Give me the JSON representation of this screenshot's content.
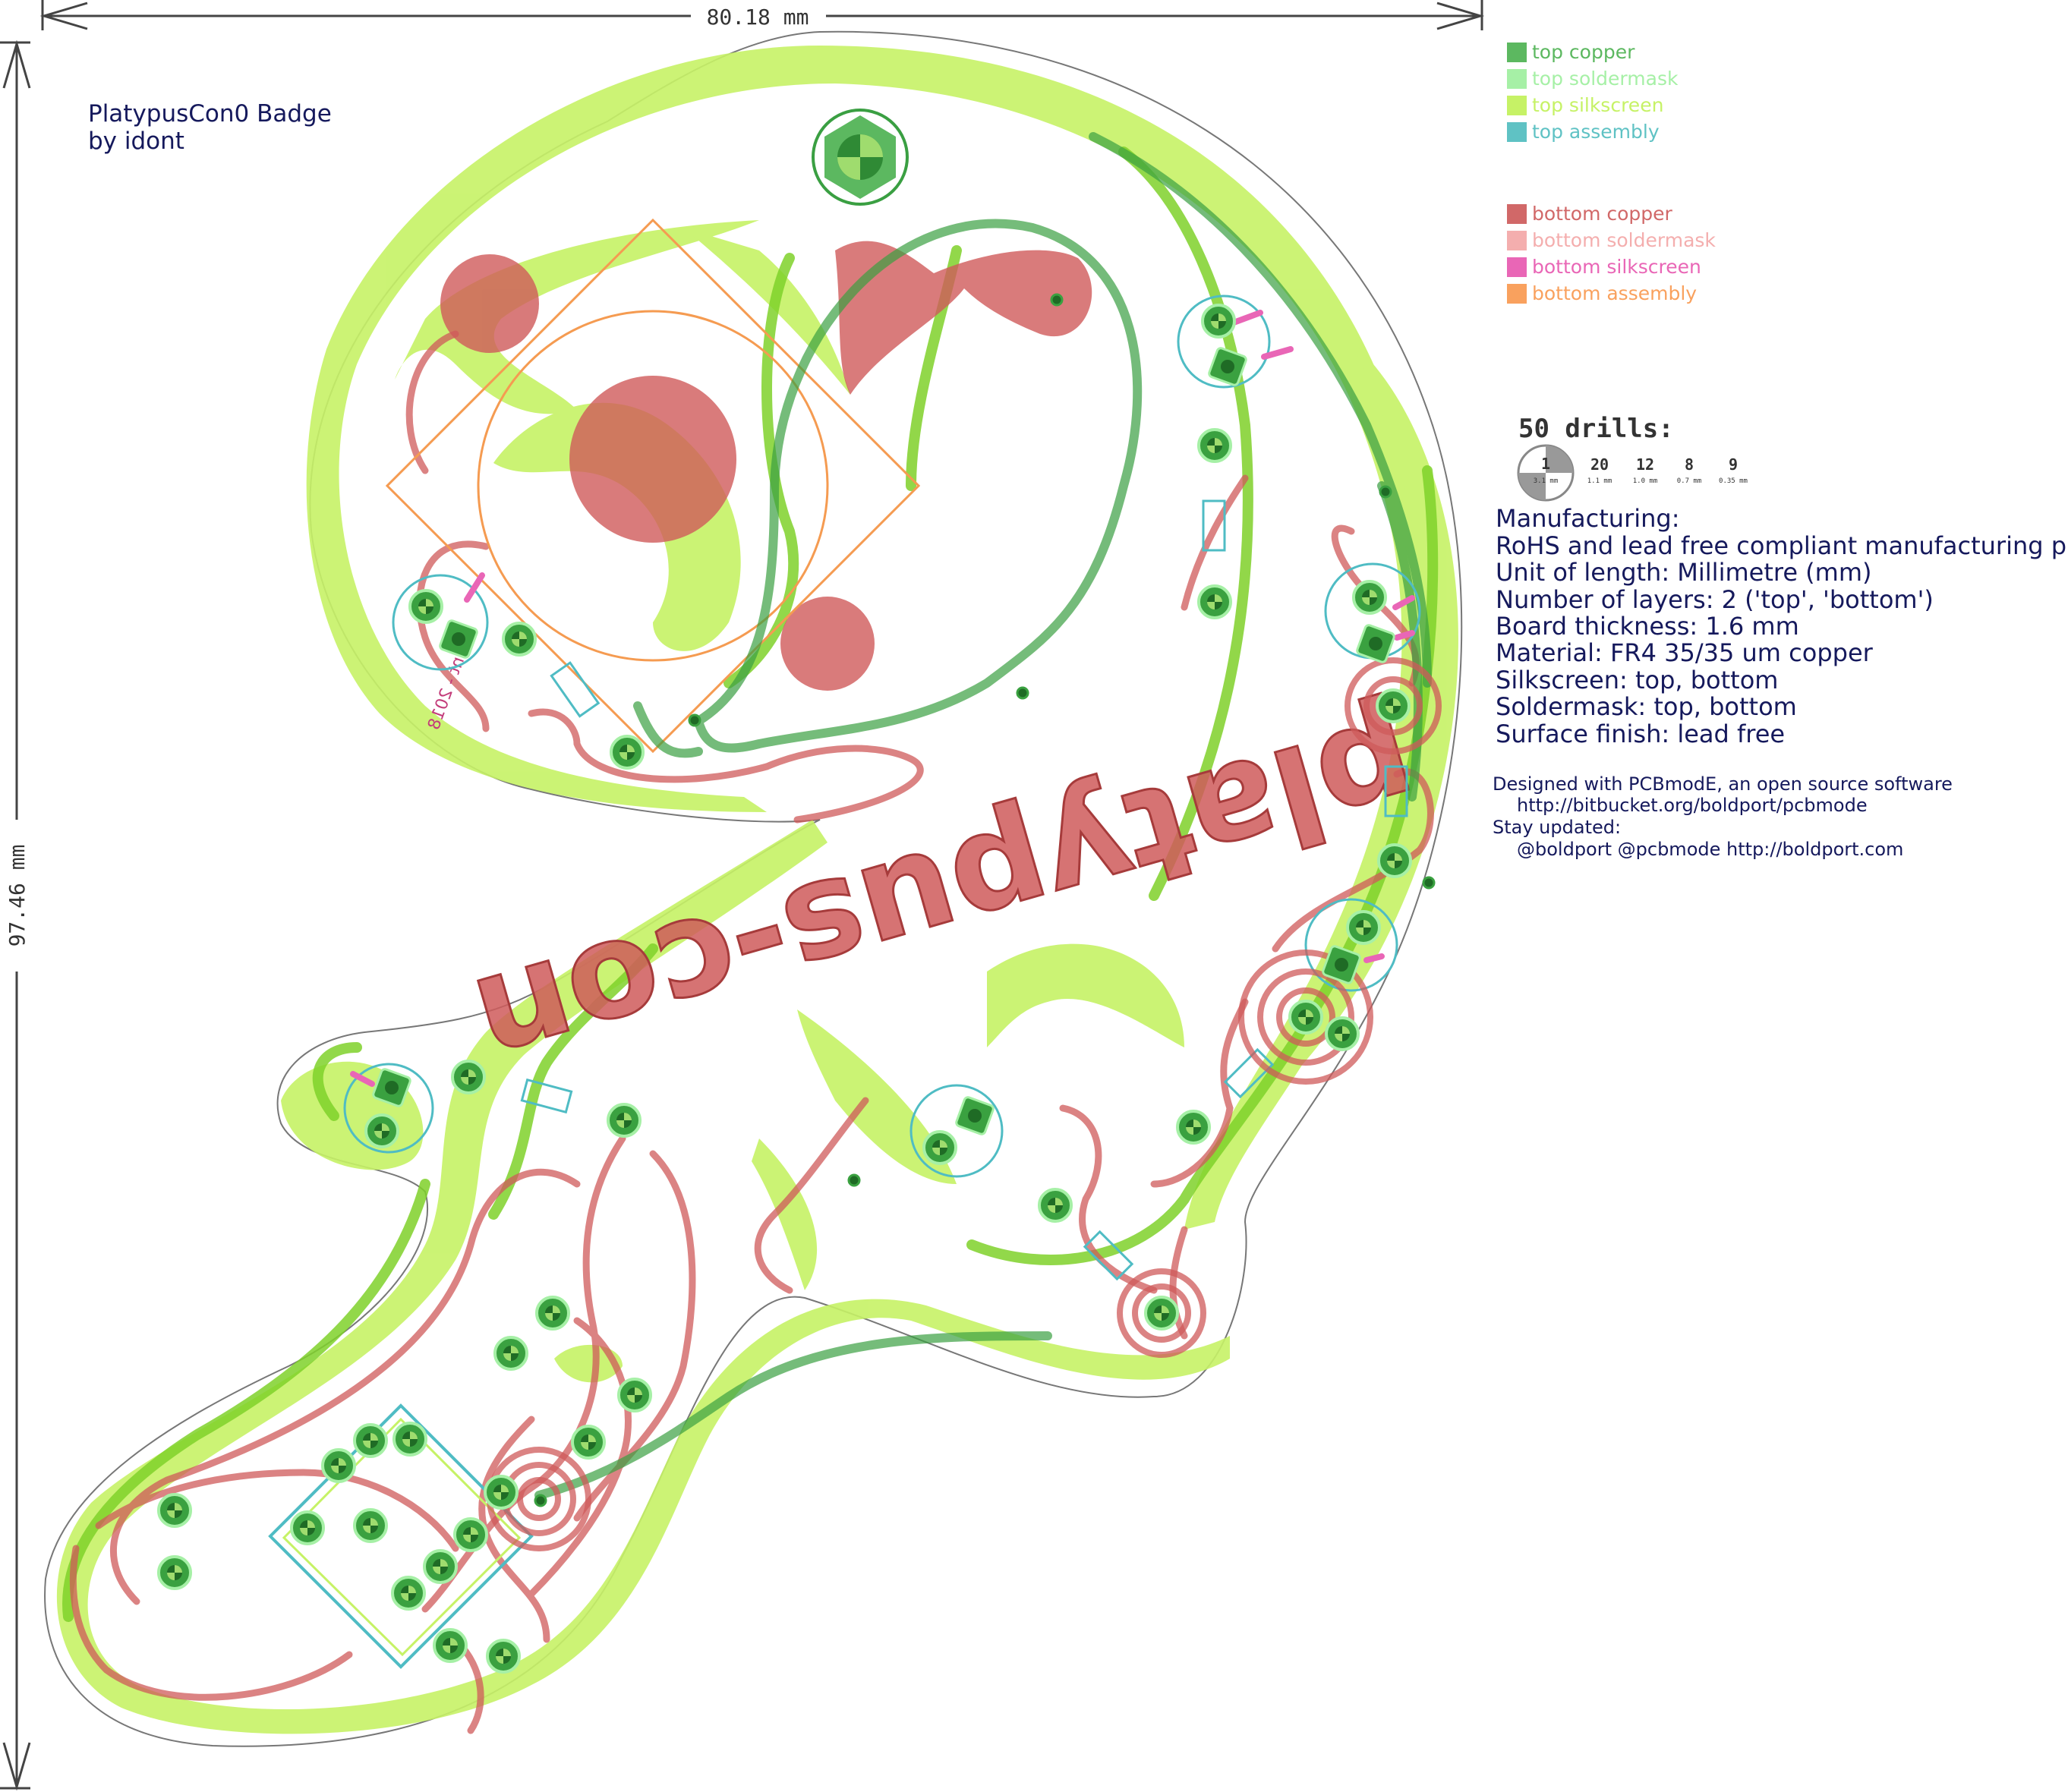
{
  "dimensions": {
    "width": "80.18 mm",
    "height": "97.46 mm"
  },
  "board_title": {
    "line1": "PlatypusCon0 Badge",
    "line2": "by idont"
  },
  "silkscreen_text": {
    "main": "platypus-con",
    "small": "idont - 2018"
  },
  "legend": {
    "top": [
      {
        "label": "top copper",
        "color": "#5cb860"
      },
      {
        "label": "top soldermask",
        "color": "#a6f0a6"
      },
      {
        "label": "top silkscreen",
        "color": "#c6f266"
      },
      {
        "label": "top assembly",
        "color": "#5fc2c4"
      }
    ],
    "bottom": [
      {
        "label": "bottom copper",
        "color": "#d16868"
      },
      {
        "label": "bottom soldermask",
        "color": "#f4aeae"
      },
      {
        "label": "bottom silkscreen",
        "color": "#e966b6"
      },
      {
        "label": "bottom assembly",
        "color": "#f9a15e"
      }
    ]
  },
  "drills": {
    "title": "50 drills:",
    "items": [
      {
        "count": "1",
        "size": "3.1 mm"
      },
      {
        "count": "20",
        "size": "1.1 mm"
      },
      {
        "count": "12",
        "size": "1.0 mm"
      },
      {
        "count": "8",
        "size": "0.7 mm"
      },
      {
        "count": "9",
        "size": "0.35 mm"
      }
    ]
  },
  "manufacturing": {
    "heading": "Manufacturing:",
    "lines": [
      "RoHS and lead free compliant manufacturing process",
      "Unit of length: Millimetre (mm)",
      "Number of layers: 2 ('top', 'bottom')",
      "Board thickness: 1.6 mm",
      "Material: FR4 35/35 um copper",
      "Silkscreen: top, bottom",
      "Soldermask: top, bottom",
      "Surface finish: lead free"
    ]
  },
  "footer": {
    "designed": "Designed with PCBmodE, an open source software",
    "url": "http://bitbucket.org/boldport/pcbmode",
    "stay": "Stay updated:",
    "contacts": "@boldport @pcbmode http://boldport.com"
  },
  "colors": {
    "outline": "#777777",
    "silk": "#c6f266",
    "silk_dark": "#7fd12a",
    "top_copper": "#3a9f42",
    "bottom_copper": "#cf5a5a",
    "assembly_top": "#4fbcc4",
    "assembly_bottom": "#f59b51",
    "navy": "#15195c"
  }
}
